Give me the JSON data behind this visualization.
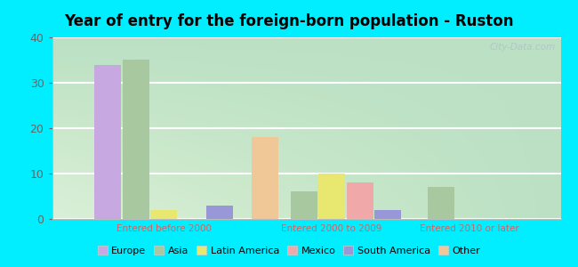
{
  "title": "Year of entry for the foreign-born population - Ruston",
  "groups": [
    "Entered before 2000",
    "Entered 2000 to 2009",
    "Entered 2010 or later"
  ],
  "categories": [
    "Europe",
    "Asia",
    "Latin America",
    "Mexico",
    "South America",
    "Other"
  ],
  "colors": [
    "#c8a8e0",
    "#a8c8a0",
    "#e8e870",
    "#f0a8a8",
    "#9898d8",
    "#f0c898"
  ],
  "values": [
    [
      34,
      35,
      2,
      0,
      3,
      18
    ],
    [
      0,
      6,
      10,
      8,
      2,
      0
    ],
    [
      0,
      7,
      0,
      0,
      0,
      0
    ]
  ],
  "ylim": [
    0,
    40
  ],
  "yticks": [
    0,
    10,
    20,
    30,
    40
  ],
  "background_color": "#00eeff",
  "plot_bg_color": "#e8f5e8",
  "watermark": "City-Data.com",
  "bar_width": 0.055,
  "group_positions": [
    0.22,
    0.55,
    0.82
  ],
  "xlim": [
    0.0,
    1.0
  ]
}
